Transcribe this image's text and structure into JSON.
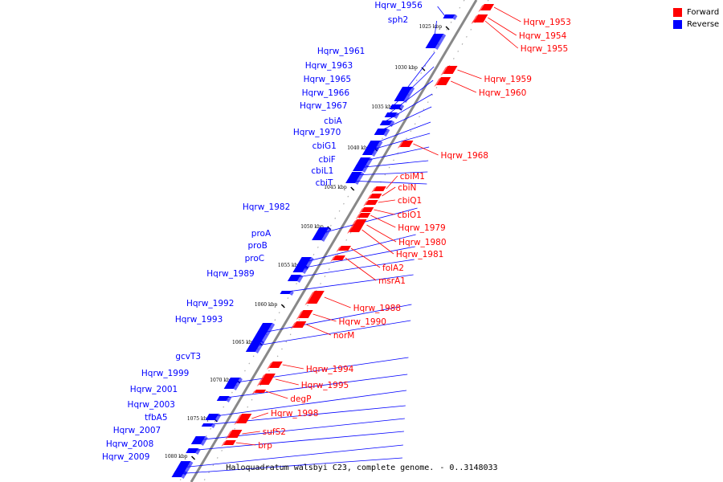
{
  "legend": {
    "forward": {
      "label": "Forward",
      "color": "#ff0000"
    },
    "reverse": {
      "label": "Reverse",
      "color": "#0000ff"
    }
  },
  "caption": {
    "name": "Haloquadratum walsbyi C23, complete genome.",
    "range": "- 0..3148033"
  },
  "ticks": [
    "1025 kbp",
    "1030 kbp",
    "1035 kbp",
    "1040 kbp",
    "1045 kbp",
    "1050 kbp",
    "1055 kbp",
    "1060 kbp",
    "1065 kbp",
    "1070 kbp",
    "1075 kbp",
    "1080 kbp"
  ],
  "genes": {
    "reverse": [
      "Hqrw_1956",
      "sph2",
      "Hqrw_1961",
      "Hqrw_1963",
      "Hqrw_1965",
      "Hqrw_1966",
      "Hqrw_1967",
      "cbiA",
      "Hqrw_1970",
      "cbiG1",
      "cbiF",
      "cbiL1",
      "cbiT",
      "Hqrw_1982",
      "proA",
      "proB",
      "proC",
      "Hqrw_1989",
      "Hqrw_1992",
      "Hqrw_1993",
      "gcvT3",
      "Hqrw_1999",
      "Hqrw_2001",
      "Hqrw_2003",
      "tfbA5",
      "Hqrw_2007",
      "Hqrw_2008",
      "Hqrw_2009"
    ],
    "forward": [
      "Hqrw_1953",
      "Hqrw_1954",
      "Hqrw_1955",
      "Hqrw_1959",
      "Hqrw_1960",
      "Hqrw_1968",
      "cbiM1",
      "cbiN",
      "cbiQ1",
      "cbiO1",
      "Hqrw_1979",
      "Hqrw_1980",
      "Hqrw_1981",
      "folA2",
      "msrA1",
      "Hqrw_1988",
      "Hqrw_1990",
      "norM",
      "Hqrw_1994",
      "Hqrw_1995",
      "degP",
      "Hqrw_1998",
      "sufS2",
      "brp"
    ]
  },
  "colors": {
    "forward": "#ff0000",
    "reverse": "#0000ff",
    "axis": "#888888"
  }
}
